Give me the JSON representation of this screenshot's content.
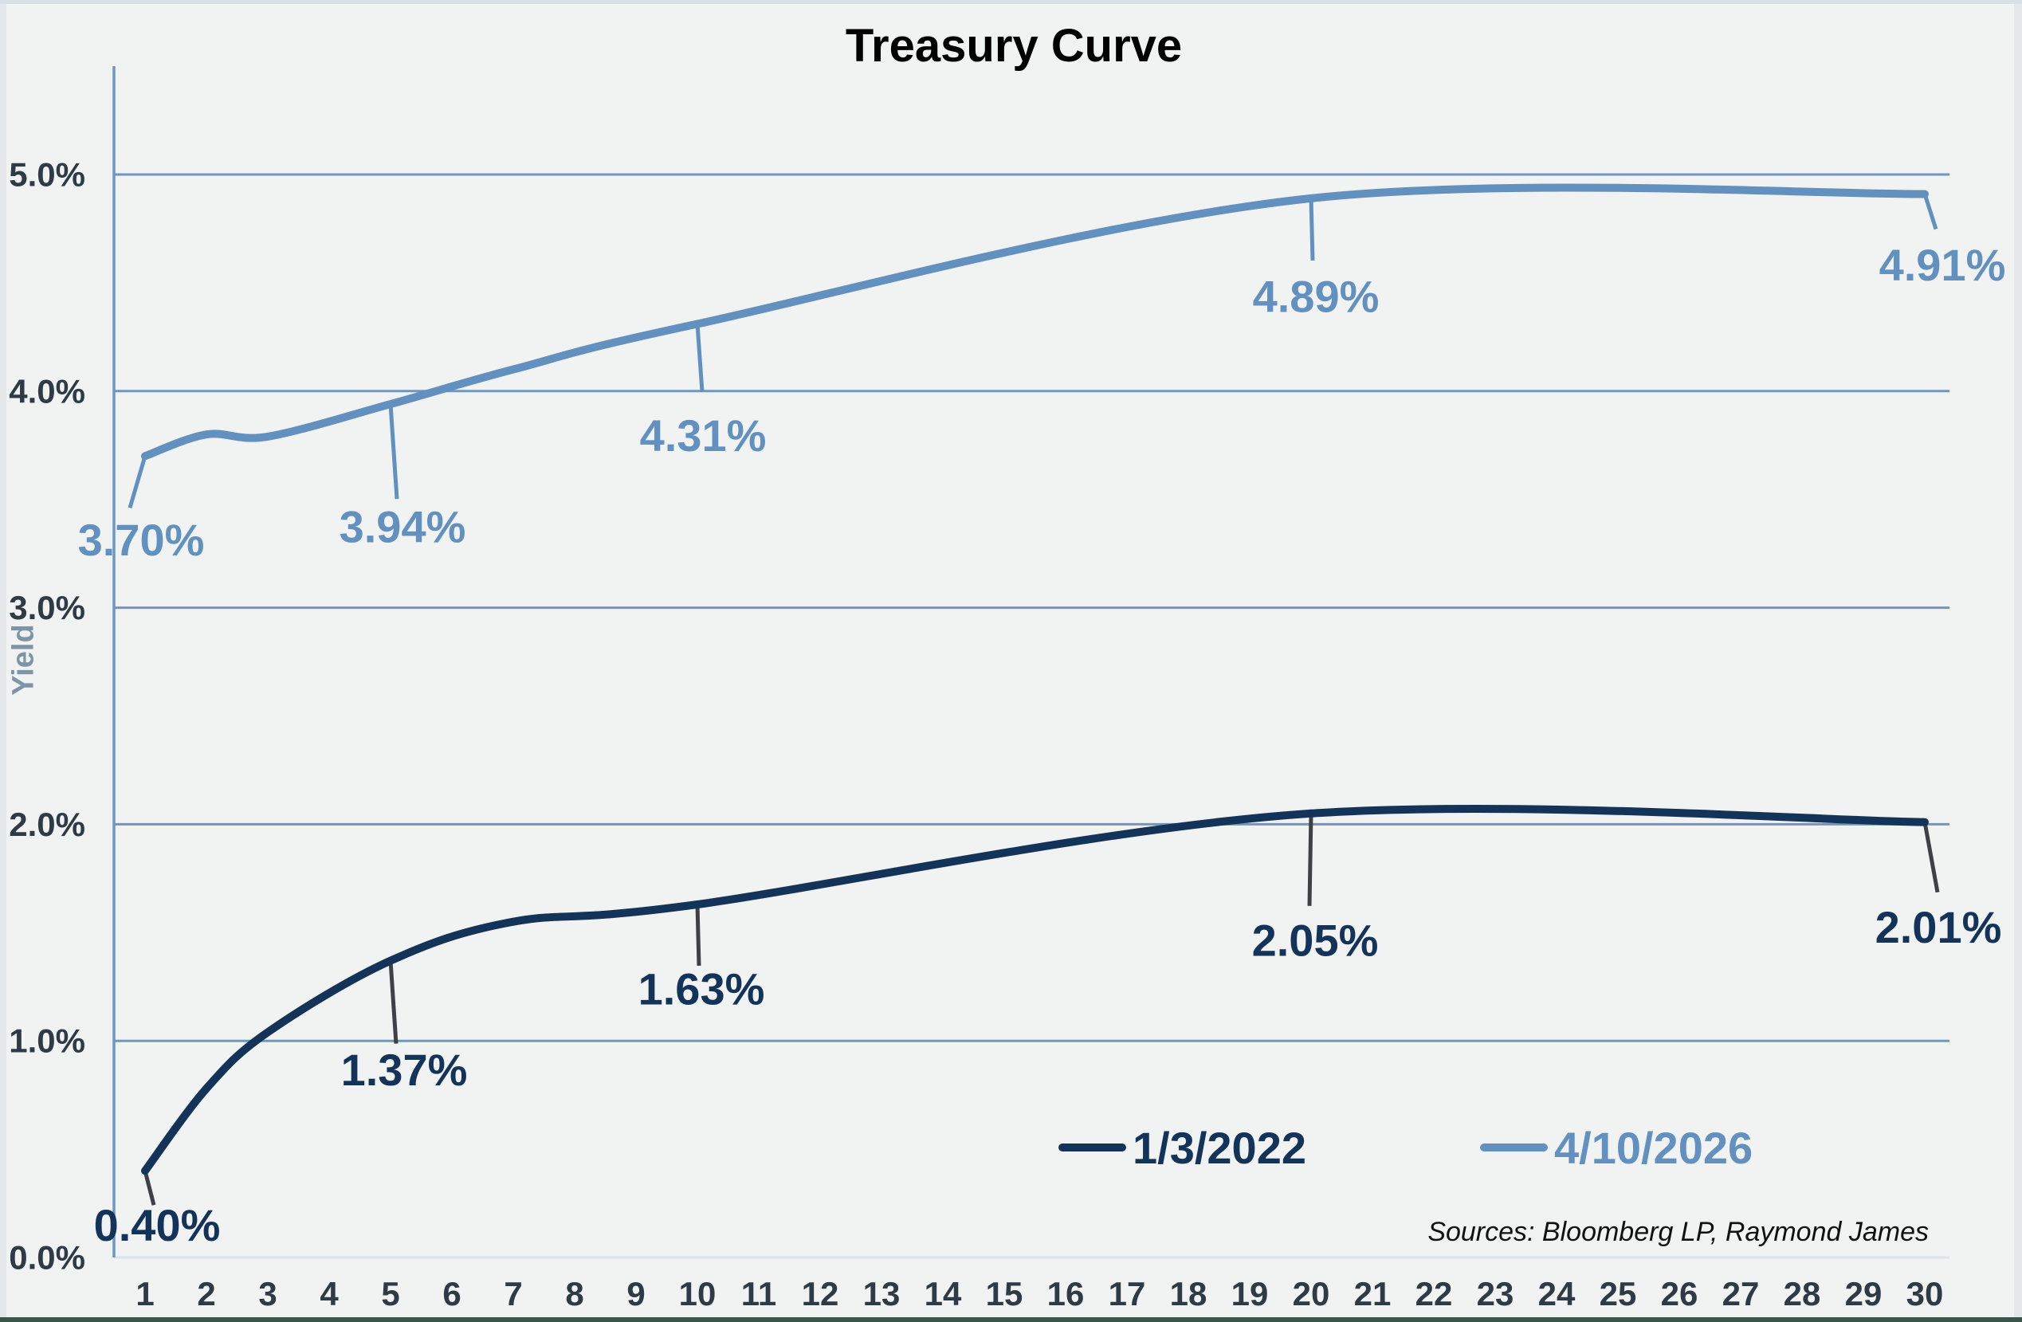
{
  "title": "Treasury Curve",
  "y_axis_title": "Yield",
  "sources_note": "Sources: Bloomberg LP, Raymond James",
  "colors": {
    "background": "#f1f2f2",
    "navy": "#143359",
    "steel_blue": "#6290bf",
    "gridline": "#6e97c4",
    "baseline": "#dce3e9",
    "leader_gray": "#3d4145",
    "tick_label": "#2e3b46",
    "yield_label": "#7e95a6",
    "title_color": "#000000",
    "sources_color": "#111111",
    "border_top": "#d8dfe5",
    "border_side": "#e4e8eb",
    "border_bottom": "#3a564a"
  },
  "legend": {
    "items": [
      {
        "label": "1/3/2022",
        "color": "#143359"
      },
      {
        "label": "4/10/2026",
        "color": "#6290bf"
      }
    ]
  },
  "chart_data": {
    "type": "line",
    "title": "Treasury Curve",
    "xlabel": "",
    "ylabel": "Yield",
    "grid": true,
    "legend_position": "inside-bottom-right",
    "ylim": [
      0,
      5.5
    ],
    "y_ticks": [
      {
        "value": 0,
        "label": "0.0%"
      },
      {
        "value": 1,
        "label": "1.0%"
      },
      {
        "value": 2,
        "label": "2.0%"
      },
      {
        "value": 3,
        "label": "3.0%"
      },
      {
        "value": 4,
        "label": "4.0%"
      },
      {
        "value": 5,
        "label": "5.0%"
      }
    ],
    "x_label_ticks": [
      1,
      2,
      3,
      4,
      5,
      6,
      7,
      8,
      9,
      10,
      11,
      12,
      13,
      14,
      15,
      16,
      17,
      18,
      19,
      20,
      21,
      22,
      23,
      24,
      25,
      26,
      27,
      28,
      29,
      30
    ],
    "x": [
      1,
      2,
      3,
      5,
      7,
      10,
      20,
      30
    ],
    "series": [
      {
        "name": "1/3/2022",
        "color": "#143359",
        "leader_color": "#3d4145",
        "values": [
          0.4,
          0.78,
          1.04,
          1.37,
          1.55,
          1.63,
          2.05,
          2.01
        ],
        "point_labels": [
          {
            "x": 1,
            "text": "0.40%",
            "leader_offset": [
              11,
              43
            ],
            "label_offset": [
              15,
              68
            ]
          },
          {
            "x": 5,
            "text": "1.37%",
            "leader_offset": [
              7,
              104
            ],
            "label_offset": [
              17,
              137
            ]
          },
          {
            "x": 10,
            "text": "1.63%",
            "leader_offset": [
              2,
              77
            ],
            "label_offset": [
              5,
              106
            ]
          },
          {
            "x": 20,
            "text": "2.05%",
            "leader_offset": [
              -2,
              116
            ],
            "label_offset": [
              5,
              159
            ]
          },
          {
            "x": 30,
            "text": "2.01%",
            "leader_offset": [
              16,
              88
            ],
            "label_offset": [
              17,
              132
            ]
          }
        ]
      },
      {
        "name": "4/10/2026",
        "color": "#6290bf",
        "leader_color": "#6290bf",
        "values": [
          3.7,
          3.8,
          3.79,
          3.94,
          4.1,
          4.31,
          4.89,
          4.91
        ],
        "point_labels": [
          {
            "x": 1,
            "text": "3.70%",
            "leader_offset": [
              -19,
              65
            ],
            "label_offset": [
              -5,
              105
            ]
          },
          {
            "x": 5,
            "text": "3.94%",
            "leader_offset": [
              8,
              119
            ],
            "label_offset": [
              15,
              154
            ]
          },
          {
            "x": 10,
            "text": "4.31%",
            "leader_offset": [
              6,
              85
            ],
            "label_offset": [
              7,
              140
            ]
          },
          {
            "x": 20,
            "text": "4.89%",
            "leader_offset": [
              2,
              78
            ],
            "label_offset": [
              6,
              123
            ]
          },
          {
            "x": 30,
            "text": "4.91%",
            "leader_offset": [
              14,
              44
            ],
            "label_offset": [
              22,
              89
            ]
          }
        ]
      }
    ]
  }
}
